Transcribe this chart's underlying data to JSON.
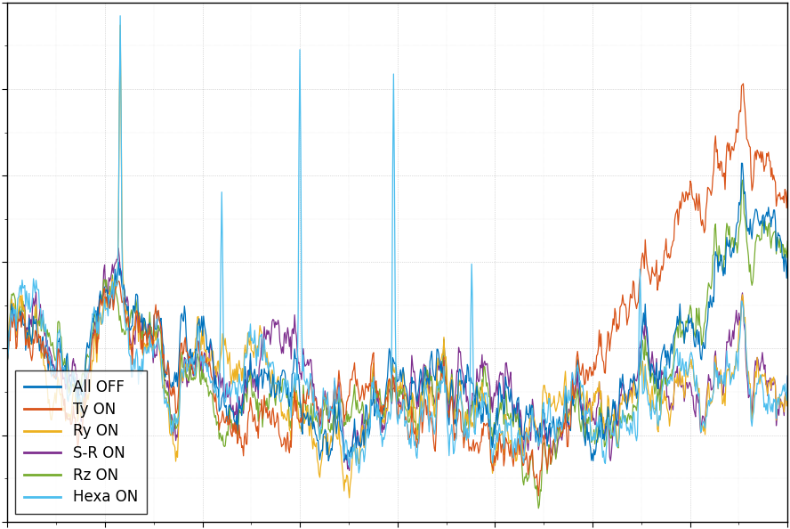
{
  "title": "",
  "xlabel": "",
  "ylabel": "",
  "legend_labels": [
    "All OFF",
    "Ty ON",
    "Ry ON",
    "S-R ON",
    "Rz ON",
    "Hexa ON"
  ],
  "colors": [
    "#0072BD",
    "#D95319",
    "#EDB120",
    "#7E2F8E",
    "#77AC30",
    "#4DBEEE"
  ],
  "line_width": 0.9,
  "background_color": "#ffffff",
  "grid_color": "#aaaaaa",
  "legend_loc": "lower left",
  "figsize": [
    8.88,
    5.94
  ],
  "dpi": 100,
  "n_points": 900,
  "seed": 7
}
